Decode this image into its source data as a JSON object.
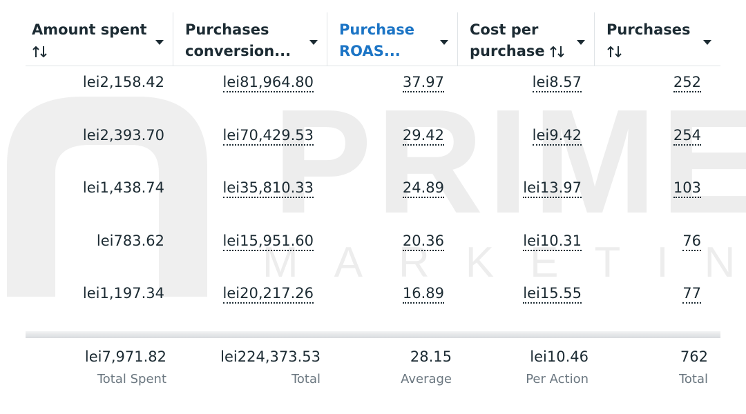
{
  "watermark": {
    "title": "PRIME",
    "subtitle": "MARKETING"
  },
  "table": {
    "headers": [
      [
        "Amount spent"
      ],
      [
        "Purchases",
        "conversion..."
      ],
      [
        "Purchase",
        "ROAS..."
      ],
      [
        "Cost per",
        "purchase"
      ],
      [
        "Purchases"
      ]
    ],
    "rows": [
      [
        "lei2,158.42",
        "lei81,964.80",
        "37.97",
        "lei8.57",
        "252"
      ],
      [
        "lei2,393.70",
        "lei70,429.53",
        "29.42",
        "lei9.42",
        "254"
      ],
      [
        "lei1,438.74",
        "lei35,810.33",
        "24.89",
        "lei13.97",
        "103"
      ],
      [
        "lei783.62",
        "lei15,951.60",
        "20.36",
        "lei10.31",
        "76"
      ],
      [
        "lei1,197.34",
        "lei20,217.26",
        "16.89",
        "lei15.55",
        "77"
      ]
    ],
    "totals": [
      "lei7,971.82",
      "lei224,373.53",
      "28.15",
      "lei10.46",
      "762"
    ],
    "total_labels": [
      "Total Spent",
      "Total",
      "Average",
      "Per Action",
      "Total"
    ]
  }
}
